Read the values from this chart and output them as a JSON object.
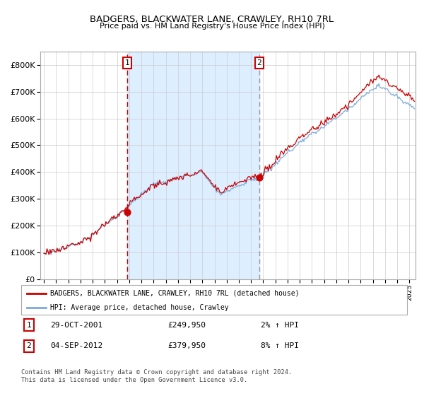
{
  "title": "BADGERS, BLACKWATER LANE, CRAWLEY, RH10 7RL",
  "subtitle": "Price paid vs. HM Land Registry's House Price Index (HPI)",
  "legend_line1": "BADGERS, BLACKWATER LANE, CRAWLEY, RH10 7RL (detached house)",
  "legend_line2": "HPI: Average price, detached house, Crawley",
  "annotation1_date": "29-OCT-2001",
  "annotation1_price": "£249,950",
  "annotation1_hpi": "2% ↑ HPI",
  "annotation1_year": 2001.83,
  "annotation1_value": 249950,
  "annotation2_date": "04-SEP-2012",
  "annotation2_price": "£379,950",
  "annotation2_hpi": "8% ↑ HPI",
  "annotation2_year": 2012.67,
  "annotation2_value": 379950,
  "footer_line1": "Contains HM Land Registry data © Crown copyright and database right 2024.",
  "footer_line2": "This data is licensed under the Open Government Licence v3.0.",
  "red_color": "#cc0000",
  "blue_color": "#7aaadd",
  "bg_shaded": "#ddeeff",
  "vline1_color": "#cc0000",
  "vline2_color": "#999999",
  "grid_color": "#cccccc",
  "ylim": [
    0,
    850000
  ],
  "xlim_start": 1994.7,
  "xlim_end": 2025.5
}
